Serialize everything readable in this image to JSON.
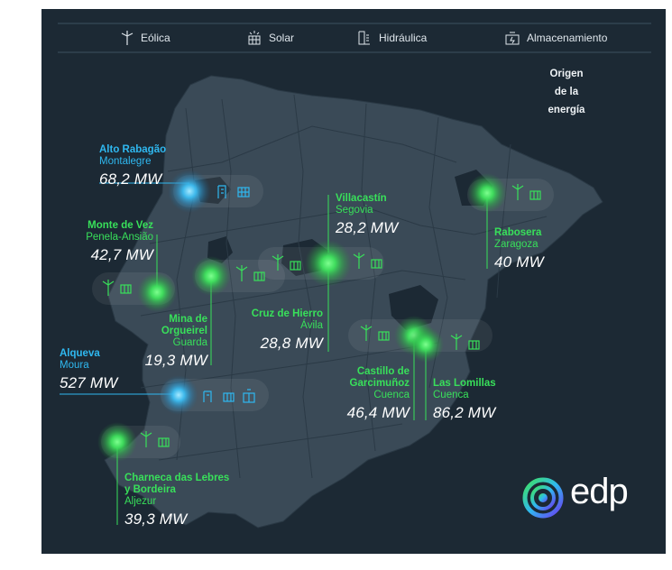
{
  "legend": {
    "wind": "Eólica",
    "solar": "Solar",
    "hydro": "Hidráulica",
    "storage": "Almacenamiento"
  },
  "origin_title": [
    "Origen",
    "de la",
    "energía"
  ],
  "sites": [
    {
      "id": "alto-rabagao",
      "name": [
        "Alto Rabagão"
      ],
      "place": "Montalegre",
      "mw": "68,2 MW",
      "type": "hydro",
      "color": "#2fb8f0"
    },
    {
      "id": "monte-de-vez",
      "name": [
        "Monte de Vez"
      ],
      "place": "Penela-Ansião",
      "mw": "42,7 MW",
      "type": "wind-solar",
      "color": "#38e05a"
    },
    {
      "id": "mina-de-orgueirel",
      "name": [
        "Mina de",
        "Orgueirel"
      ],
      "place": "Guarda",
      "mw": "19,3 MW",
      "type": "wind-solar",
      "color": "#38e05a"
    },
    {
      "id": "alqueva",
      "name": [
        "Alqueva"
      ],
      "place": "Moura",
      "mw": "527 MW",
      "type": "hydro-solar-storage",
      "color": "#2fb8f0"
    },
    {
      "id": "charneca",
      "name": [
        "Charneca das Lebres",
        "y Bordeira"
      ],
      "place": "Aljezur",
      "mw": "39,3 MW",
      "type": "wind-solar",
      "color": "#38e05a"
    },
    {
      "id": "villacastin",
      "name": [
        "Villacastín"
      ],
      "place": "Segovia",
      "mw": "28,2 MW",
      "type": "wind-solar",
      "color": "#38e05a"
    },
    {
      "id": "cruz-de-hierro",
      "name": [
        "Cruz de Hierro"
      ],
      "place": "Ávila",
      "mw": "28,8 MW",
      "type": "wind-solar",
      "color": "#38e05a"
    },
    {
      "id": "rabosera",
      "name": [
        "Rabosera"
      ],
      "place": "Zaragoza",
      "mw": "40 MW",
      "type": "wind-solar",
      "color": "#38e05a"
    },
    {
      "id": "castillo-de-garcimunoz",
      "name": [
        "Castillo de",
        "Garcimuñoz"
      ],
      "place": "Cuenca",
      "mw": "46,4 MW",
      "type": "wind-solar",
      "color": "#38e05a"
    },
    {
      "id": "las-lomillas",
      "name": [
        "Las Lomillas"
      ],
      "place": "Cuenca",
      "mw": "86,2 MW",
      "type": "wind-solar",
      "color": "#38e05a"
    }
  ],
  "brand": "edp",
  "colors": {
    "background": "#1c2934",
    "land": "#3a4a57",
    "wind_solar": "#38e05a",
    "hydro": "#2fb8f0"
  }
}
